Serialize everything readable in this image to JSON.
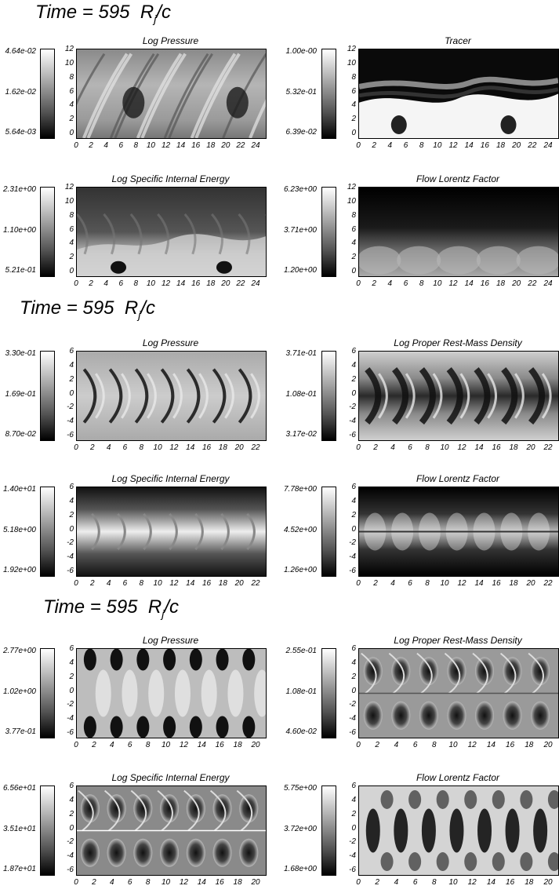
{
  "sections": [
    {
      "time": {
        "prefix": "Time = ",
        "value": "595",
        "unit_main": "R",
        "unit_sub": "j",
        "unit_tail": "/c"
      },
      "panels": [
        {
          "title": "Log Pressure",
          "cb": [
            "4.64e-02",
            "1.62e-02",
            "5.64e-03"
          ],
          "yticks": [
            "12",
            "10",
            "8",
            "6",
            "4",
            "2",
            "0"
          ],
          "xticks": [
            "0",
            "2",
            "4",
            "6",
            "8",
            "10",
            "12",
            "14",
            "16",
            "18",
            "20",
            "22",
            "24"
          ],
          "style": "pressure1"
        },
        {
          "title": "Tracer",
          "cb": [
            "1.00e-00",
            "5.32e-01",
            "6.39e-02"
          ],
          "yticks": [
            "12",
            "10",
            "8",
            "6",
            "4",
            "2",
            "0"
          ],
          "xticks": [
            "0",
            "2",
            "4",
            "6",
            "8",
            "10",
            "12",
            "14",
            "16",
            "18",
            "20",
            "22",
            "24"
          ],
          "style": "tracer"
        },
        {
          "title": "Log Specific Internal Energy",
          "cb": [
            "2.31e+00",
            "1.10e+00",
            "5.21e-01"
          ],
          "yticks": [
            "12",
            "10",
            "8",
            "6",
            "4",
            "2",
            "0"
          ],
          "xticks": [
            "0",
            "2",
            "4",
            "6",
            "8",
            "10",
            "12",
            "14",
            "16",
            "18",
            "20",
            "22",
            "24"
          ],
          "style": "energy1"
        },
        {
          "title": "Flow Lorentz Factor",
          "cb": [
            "6.23e+00",
            "3.71e+00",
            "1.20e+00"
          ],
          "yticks": [
            "12",
            "10",
            "8",
            "6",
            "4",
            "2",
            "0"
          ],
          "xticks": [
            "0",
            "2",
            "4",
            "6",
            "8",
            "10",
            "12",
            "14",
            "16",
            "18",
            "20",
            "22",
            "24"
          ],
          "style": "lorentz1"
        }
      ]
    },
    {
      "time": {
        "prefix": "Time = ",
        "value": "595",
        "unit_main": "R",
        "unit_sub": "j",
        "unit_tail": "/c"
      },
      "panels": [
        {
          "title": "Log Pressure",
          "cb": [
            "3.30e-01",
            "1.69e-01",
            "8.70e-02"
          ],
          "yticks": [
            "6",
            "4",
            "2",
            "0",
            "-2",
            "-4",
            "-6"
          ],
          "xticks": [
            "0",
            "2",
            "4",
            "6",
            "8",
            "10",
            "12",
            "14",
            "16",
            "18",
            "20",
            "22"
          ],
          "style": "pressure2"
        },
        {
          "title": "Log Proper Rest-Mass Density",
          "cb": [
            "3.71e-01",
            "1.08e-01",
            "3.17e-02"
          ],
          "yticks": [
            "6",
            "4",
            "2",
            "0",
            "-2",
            "-4",
            "-6"
          ],
          "xticks": [
            "0",
            "2",
            "4",
            "6",
            "8",
            "10",
            "12",
            "14",
            "16",
            "18",
            "20",
            "22"
          ],
          "style": "density2"
        },
        {
          "title": "Log Specific Internal Energy",
          "cb": [
            "1.40e+01",
            "5.18e+00",
            "1.92e+00"
          ],
          "yticks": [
            "6",
            "4",
            "2",
            "0",
            "-2",
            "-4",
            "-6"
          ],
          "xticks": [
            "0",
            "2",
            "4",
            "6",
            "8",
            "10",
            "12",
            "14",
            "16",
            "18",
            "20",
            "22"
          ],
          "style": "energy2"
        },
        {
          "title": "Flow Lorentz Factor",
          "cb": [
            "7.78e+00",
            "4.52e+00",
            "1.26e+00"
          ],
          "yticks": [
            "6",
            "4",
            "2",
            "0",
            "-2",
            "-4",
            "-6"
          ],
          "xticks": [
            "0",
            "2",
            "4",
            "6",
            "8",
            "10",
            "12",
            "14",
            "16",
            "18",
            "20",
            "22"
          ],
          "style": "lorentz2"
        }
      ]
    },
    {
      "time": {
        "prefix": "Time = ",
        "value": "595",
        "unit_main": "R",
        "unit_sub": "j",
        "unit_tail": "/c"
      },
      "panels": [
        {
          "title": "Log Pressure",
          "cb": [
            "2.77e+00",
            "1.02e+00",
            "3.77e-01"
          ],
          "yticks": [
            "6",
            "4",
            "2",
            "0",
            "-2",
            "-4",
            "-6"
          ],
          "xticks": [
            "0",
            "2",
            "4",
            "6",
            "8",
            "10",
            "12",
            "14",
            "16",
            "18",
            "20"
          ],
          "style": "pressure3"
        },
        {
          "title": "Log Proper Rest-Mass Density",
          "cb": [
            "2.55e-01",
            "1.08e-01",
            "4.60e-02"
          ],
          "yticks": [
            "6",
            "4",
            "2",
            "0",
            "-2",
            "-4",
            "-6"
          ],
          "xticks": [
            "0",
            "2",
            "4",
            "6",
            "8",
            "10",
            "12",
            "14",
            "16",
            "18",
            "20"
          ],
          "style": "density3"
        },
        {
          "title": "Log Specific Internal Energy",
          "cb": [
            "6.56e+01",
            "3.51e+01",
            "1.87e+01"
          ],
          "yticks": [
            "6",
            "4",
            "2",
            "0",
            "-2",
            "-4",
            "-6"
          ],
          "xticks": [
            "0",
            "2",
            "4",
            "6",
            "8",
            "10",
            "12",
            "14",
            "16",
            "18",
            "20"
          ],
          "style": "energy3"
        },
        {
          "title": "Flow Lorentz Factor",
          "cb": [
            "5.75e+00",
            "3.72e+00",
            "1.68e+00"
          ],
          "yticks": [
            "6",
            "4",
            "2",
            "0",
            "-2",
            "-4",
            "-6"
          ],
          "xticks": [
            "0",
            "2",
            "4",
            "6",
            "8",
            "10",
            "12",
            "14",
            "16",
            "18",
            "20"
          ],
          "style": "lorentz3"
        }
      ]
    }
  ]
}
